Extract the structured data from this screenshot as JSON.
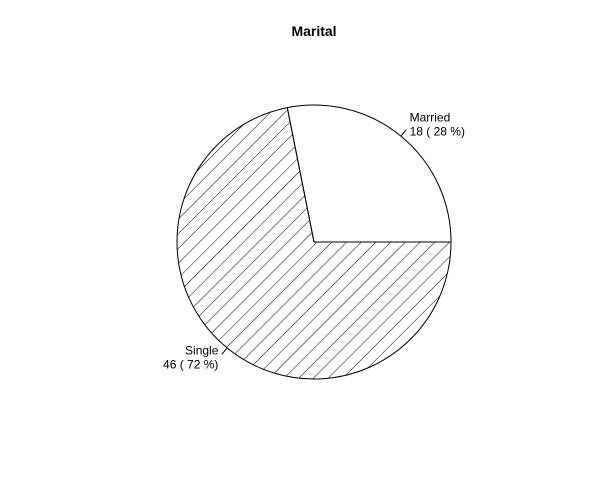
{
  "chart_data": {
    "type": "pie",
    "title": "Marital",
    "slices": [
      {
        "name": "Married",
        "value": 18,
        "percent": 28,
        "label_line1": "Married",
        "label_line2": "18 ( 28 %)",
        "fill": "none"
      },
      {
        "name": "Single",
        "value": 46,
        "percent": 72,
        "label_line1": "Single",
        "label_line2": "46 ( 72 %)",
        "fill": "hatched"
      }
    ],
    "start_angle_deg": 0,
    "direction": "counterclockwise",
    "colors": {
      "stroke": "#000000",
      "background": "#ffffff",
      "hatch": "#000000"
    }
  }
}
